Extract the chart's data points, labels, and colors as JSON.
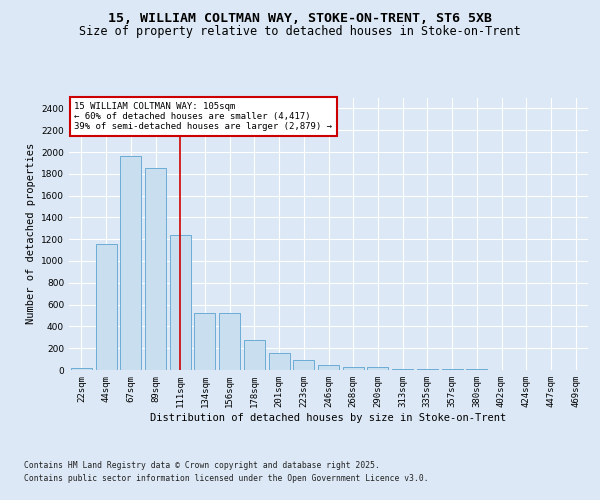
{
  "title_line1": "15, WILLIAM COLTMAN WAY, STOKE-ON-TRENT, ST6 5XB",
  "title_line2": "Size of property relative to detached houses in Stoke-on-Trent",
  "xlabel": "Distribution of detached houses by size in Stoke-on-Trent",
  "ylabel": "Number of detached properties",
  "categories": [
    "22sqm",
    "44sqm",
    "67sqm",
    "89sqm",
    "111sqm",
    "134sqm",
    "156sqm",
    "178sqm",
    "201sqm",
    "223sqm",
    "246sqm",
    "268sqm",
    "290sqm",
    "313sqm",
    "335sqm",
    "357sqm",
    "380sqm",
    "402sqm",
    "424sqm",
    "447sqm",
    "469sqm"
  ],
  "values": [
    22,
    1160,
    1960,
    1850,
    1240,
    520,
    520,
    275,
    155,
    90,
    45,
    30,
    28,
    10,
    8,
    5,
    5,
    4,
    3,
    2,
    2
  ],
  "bar_color": "#c9dff0",
  "bar_edge_color": "#5ba3d0",
  "vline_x_index": 4,
  "vline_color": "#cc0000",
  "annotation_text": "15 WILLIAM COLTMAN WAY: 105sqm\n← 60% of detached houses are smaller (4,417)\n39% of semi-detached houses are larger (2,879) →",
  "annotation_box_facecolor": "#ffffff",
  "annotation_box_edgecolor": "#cc0000",
  "ylim": [
    0,
    2500
  ],
  "yticks": [
    0,
    200,
    400,
    600,
    800,
    1000,
    1200,
    1400,
    1600,
    1800,
    2000,
    2200,
    2400
  ],
  "bg_color": "#dce8f5",
  "plot_bg_color": "#dce8f5",
  "footer_line1": "Contains HM Land Registry data © Crown copyright and database right 2025.",
  "footer_line2": "Contains public sector information licensed under the Open Government Licence v3.0.",
  "grid_color": "#ffffff",
  "title_fontsize": 9.5,
  "subtitle_fontsize": 8.5,
  "tick_fontsize": 6.5,
  "ylabel_fontsize": 7.5,
  "xlabel_fontsize": 7.5,
  "annot_fontsize": 6.5,
  "footer_fontsize": 5.8
}
